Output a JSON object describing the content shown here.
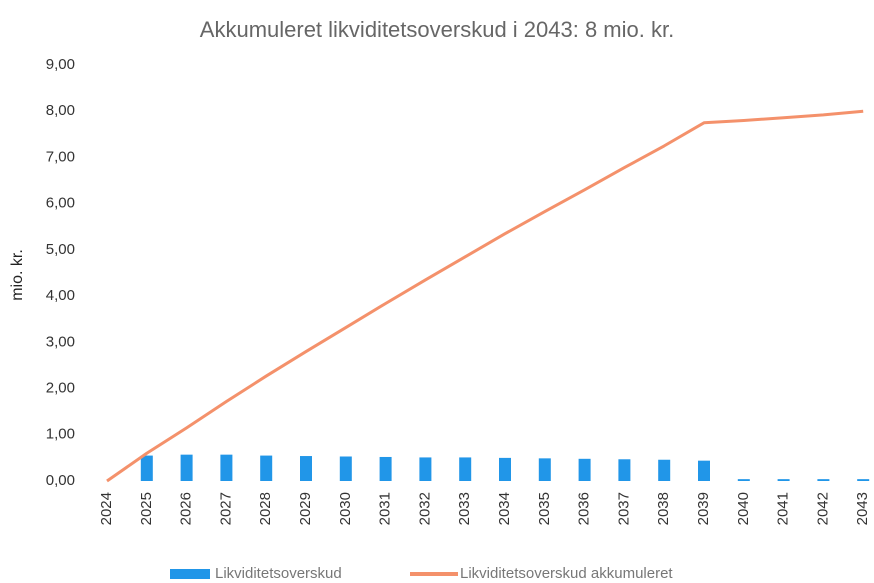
{
  "chart_data": {
    "type": "bar-line",
    "title": "Akkumuleret likviditetsoverskud i 2043: 8 mio. kr.",
    "y_label": "mio. kr.",
    "categories": [
      "2024",
      "2025",
      "2026",
      "2027",
      "2028",
      "2029",
      "2030",
      "2031",
      "2032",
      "2033",
      "2034",
      "2035",
      "2036",
      "2037",
      "2038",
      "2039",
      "2040",
      "2041",
      "2042",
      "2043"
    ],
    "series": [
      {
        "name": "Likviditetsoverskud",
        "type": "bar",
        "color": "#2196e8",
        "values": [
          0,
          0.55,
          0.57,
          0.57,
          0.55,
          0.54,
          0.53,
          0.52,
          0.51,
          0.51,
          0.5,
          0.49,
          0.48,
          0.47,
          0.46,
          0.44,
          0.04,
          0.04,
          0.04,
          0.04
        ]
      },
      {
        "name": "Likviditetsoverskud akkumuleret",
        "type": "line",
        "color": "#f4916b",
        "values": [
          0,
          0.6,
          1.15,
          1.72,
          2.27,
          2.8,
          3.32,
          3.84,
          4.35,
          4.85,
          5.35,
          5.83,
          6.3,
          6.78,
          7.25,
          7.75,
          7.8,
          7.86,
          7.92,
          8.0
        ]
      }
    ],
    "ylim": [
      0,
      9
    ],
    "yticks": [
      {
        "value": 0,
        "label": "0,00"
      },
      {
        "value": 1,
        "label": "1,00"
      },
      {
        "value": 2,
        "label": "2,00"
      },
      {
        "value": 3,
        "label": "3,00"
      },
      {
        "value": 4,
        "label": "4,00"
      },
      {
        "value": 5,
        "label": "5,00"
      },
      {
        "value": 6,
        "label": "6,00"
      },
      {
        "value": 7,
        "label": "7,00"
      },
      {
        "value": 8,
        "label": "8,00"
      },
      {
        "value": 9,
        "label": "9,00"
      }
    ],
    "grid": false,
    "legend": "bottom"
  }
}
